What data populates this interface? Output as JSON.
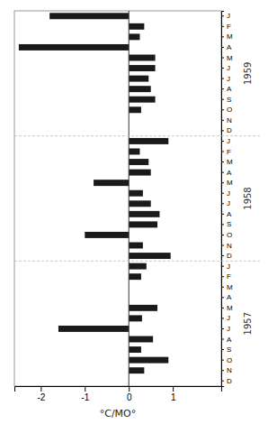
{
  "chart_data": {
    "type": "bar",
    "orientation": "horizontal",
    "xlabel": "°C/MO°",
    "categories": [
      "J",
      "F",
      "M",
      "A",
      "M",
      "J",
      "J",
      "A",
      "S",
      "O",
      "N",
      "D",
      "J",
      "F",
      "M",
      "A",
      "M",
      "J",
      "J",
      "A",
      "S",
      "O",
      "N",
      "D",
      "J",
      "F",
      "M",
      "A",
      "M",
      "J",
      "J",
      "A",
      "S",
      "O",
      "N",
      "D"
    ],
    "values": [
      -1.8,
      0.35,
      0.25,
      -2.5,
      0.6,
      0.6,
      0.45,
      0.5,
      0.6,
      0.28,
      0.0,
      0.0,
      0.9,
      0.25,
      0.45,
      0.5,
      -0.8,
      0.32,
      0.5,
      0.7,
      0.65,
      -1.0,
      0.32,
      0.95,
      0.4,
      0.28,
      0.0,
      0.0,
      0.65,
      0.3,
      -1.6,
      0.55,
      0.28,
      0.9,
      0.35,
      0.0
    ],
    "annotations": [
      "1959",
      "1958",
      "1957"
    ],
    "color": "#1a1a1a",
    "xlim": [
      -2.6,
      2.1
    ],
    "xticks": [
      -2,
      -1,
      0,
      1
    ]
  }
}
